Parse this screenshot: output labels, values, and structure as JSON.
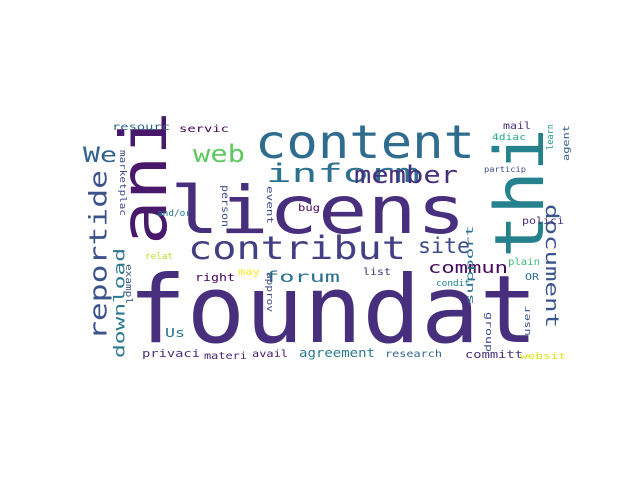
{
  "cloud": {
    "words": [
      {
        "text": "foundat",
        "color": "#472f7d"
      },
      {
        "text": "licens",
        "color": "#472f7d"
      },
      {
        "text": "ani",
        "color": "#48186a"
      },
      {
        "text": "thi",
        "color": "#26818e"
      },
      {
        "text": "content",
        "color": "#2f6c8e"
      },
      {
        "text": "contribut",
        "color": "#423f85"
      },
      {
        "text": "inform",
        "color": "#2d718e"
      },
      {
        "text": "member",
        "color": "#472f7d"
      },
      {
        "text": "reportide",
        "color": "#3b528b"
      },
      {
        "text": "web",
        "color": "#5ec962"
      },
      {
        "text": "We",
        "color": "#33638d"
      },
      {
        "text": "site",
        "color": "#3e4c8a"
      },
      {
        "text": "document",
        "color": "#3a548c"
      },
      {
        "text": "commun",
        "color": "#46085c"
      },
      {
        "text": "forum",
        "color": "#2c728e"
      },
      {
        "text": "download",
        "color": "#2a788e"
      },
      {
        "text": "agreement",
        "color": "#2a7b8e"
      },
      {
        "text": "Us",
        "color": "#2a788e"
      },
      {
        "text": "privaci",
        "color": "#46327e"
      },
      {
        "text": "materi",
        "color": "#482677"
      },
      {
        "text": "avail",
        "color": "#48186a"
      },
      {
        "text": "research",
        "color": "#31688e"
      },
      {
        "text": "committ",
        "color": "#46327e"
      },
      {
        "text": "websit",
        "color": "#dde318"
      },
      {
        "text": "right",
        "color": "#440154"
      },
      {
        "text": "may",
        "color": "#fde725"
      },
      {
        "text": "list",
        "color": "#46327e"
      },
      {
        "text": "bug",
        "color": "#46075a"
      },
      {
        "text": "person",
        "color": "#3e4c8a"
      },
      {
        "text": "servic",
        "color": "#440154"
      },
      {
        "text": "resourc",
        "color": "#31688e"
      },
      {
        "text": "marketplac",
        "color": "#3e4c8a"
      },
      {
        "text": "and/or",
        "color": "#2a788e"
      },
      {
        "text": "relat",
        "color": "#b5de2b"
      },
      {
        "text": "exampl",
        "color": "#3b528b"
      },
      {
        "text": "approv",
        "color": "#404688"
      },
      {
        "text": "event",
        "color": "#3e4a89"
      },
      {
        "text": "support",
        "color": "#2c718e"
      },
      {
        "text": "group",
        "color": "#3e4989"
      },
      {
        "text": "condit",
        "color": "#26828e"
      },
      {
        "text": "plain",
        "color": "#3dbc74"
      },
      {
        "text": "OR",
        "color": "#2f6c8e"
      },
      {
        "text": "user",
        "color": "#3a548c"
      },
      {
        "text": "mail",
        "color": "#472d7b"
      },
      {
        "text": "4diac",
        "color": "#22a884"
      },
      {
        "text": "learn",
        "color": "#1f9e89"
      },
      {
        "text": "agent",
        "color": "#355f8d"
      },
      {
        "text": "particip",
        "color": "#3e4c8a"
      },
      {
        "text": "polici",
        "color": "#472d7b"
      }
    ]
  }
}
